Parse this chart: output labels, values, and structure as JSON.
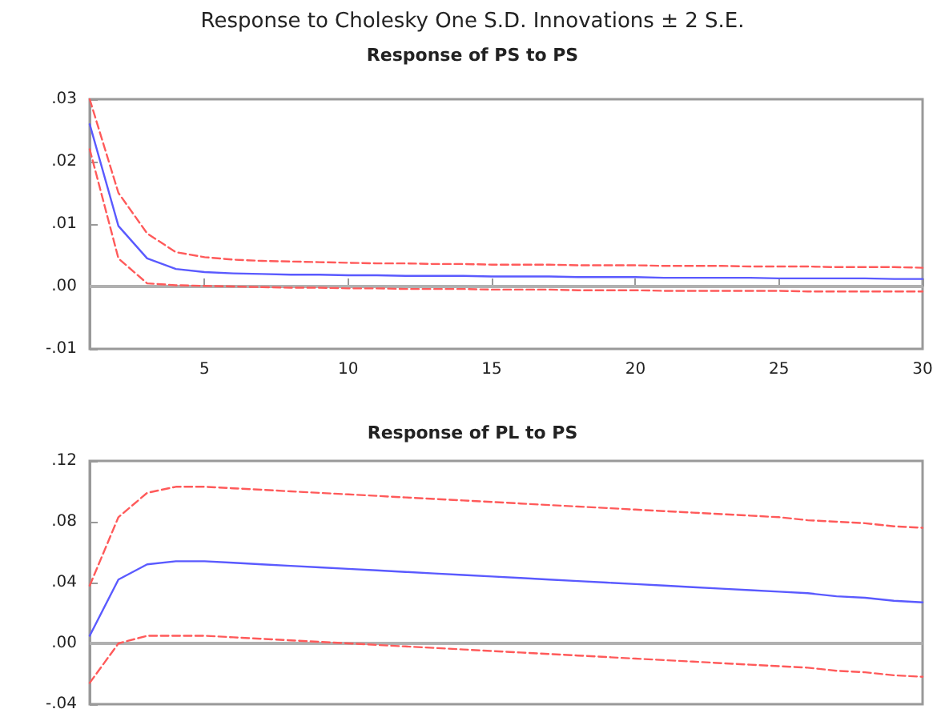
{
  "chart_data": [
    {
      "type": "line",
      "title": "Response to Cholesky One S.D. Innovations ± 2 S.E.",
      "subtitle": "Response of PS to PS",
      "x": [
        1,
        2,
        3,
        4,
        5,
        6,
        7,
        8,
        9,
        10,
        11,
        12,
        13,
        14,
        15,
        16,
        17,
        18,
        19,
        20,
        21,
        22,
        23,
        24,
        25,
        26,
        27,
        28,
        29,
        30
      ],
      "series": [
        {
          "color": "#ff5a5a",
          "line_style": "dashed",
          "values": [
            0.03,
            0.015,
            0.0085,
            0.0055,
            0.0047,
            0.0043,
            0.0041,
            0.004,
            0.0039,
            0.0038,
            0.0037,
            0.0037,
            0.0036,
            0.0036,
            0.0035,
            0.0035,
            0.0035,
            0.0034,
            0.0034,
            0.0034,
            0.0033,
            0.0033,
            0.0033,
            0.0032,
            0.0032,
            0.0032,
            0.0031,
            0.0031,
            0.0031,
            0.003
          ]
        },
        {
          "color": "#5a5aff",
          "line_style": "solid",
          "values": [
            0.026,
            0.0097,
            0.0045,
            0.0028,
            0.0023,
            0.0021,
            0.002,
            0.0019,
            0.0019,
            0.0018,
            0.0018,
            0.0017,
            0.0017,
            0.0017,
            0.0016,
            0.0016,
            0.0016,
            0.0015,
            0.0015,
            0.0015,
            0.0014,
            0.0014,
            0.0014,
            0.0014,
            0.0013,
            0.0013,
            0.0013,
            0.0013,
            0.0012,
            0.0012
          ]
        },
        {
          "color": "#ff5a5a",
          "line_style": "dashed",
          "values": [
            0.022,
            0.0045,
            0.0005,
            0.0002,
            0.0001,
            0.0,
            -0.0001,
            -0.0002,
            -0.0002,
            -0.0003,
            -0.0003,
            -0.0004,
            -0.0004,
            -0.0004,
            -0.0005,
            -0.0005,
            -0.0005,
            -0.0006,
            -0.0006,
            -0.0006,
            -0.0007,
            -0.0007,
            -0.0007,
            -0.0007,
            -0.0007,
            -0.0008,
            -0.0008,
            -0.0008,
            -0.0008,
            -0.0008
          ]
        }
      ],
      "xlim": [
        1,
        30
      ],
      "xticks": [
        5,
        10,
        15,
        20,
        25,
        30
      ],
      "ylim": [
        -0.01,
        0.03
      ],
      "yticks": [
        {
          "value": -0.01,
          "label": "-.01"
        },
        {
          "value": 0,
          "label": ".00"
        },
        {
          "value": 0.01,
          "label": ".01"
        },
        {
          "value": 0.02,
          "label": ".02"
        },
        {
          "value": 0.03,
          "label": ".03"
        }
      ],
      "ref_lines": [
        {
          "axis": "y",
          "value": 0,
          "color": "#b0b0b0"
        }
      ],
      "marker": "none",
      "grid": false
    },
    {
      "type": "line",
      "title": "Response of PL to PS",
      "x": [
        1,
        2,
        3,
        4,
        5,
        6,
        7,
        8,
        9,
        10,
        11,
        12,
        13,
        14,
        15,
        16,
        17,
        18,
        19,
        20,
        21,
        22,
        23,
        24,
        25,
        26,
        27,
        28,
        29,
        30
      ],
      "series": [
        {
          "color": "#ff5a5a",
          "line_style": "dashed",
          "values": [
            0.038,
            0.083,
            0.099,
            0.103,
            0.103,
            0.102,
            0.101,
            0.1,
            0.099,
            0.098,
            0.097,
            0.096,
            0.095,
            0.094,
            0.093,
            0.092,
            0.091,
            0.09,
            0.089,
            0.088,
            0.087,
            0.086,
            0.085,
            0.084,
            0.083,
            0.081,
            0.08,
            0.079,
            0.077,
            0.076
          ]
        },
        {
          "color": "#5a5aff",
          "line_style": "solid",
          "values": [
            0.005,
            0.042,
            0.052,
            0.054,
            0.054,
            0.053,
            0.052,
            0.051,
            0.05,
            0.049,
            0.048,
            0.047,
            0.046,
            0.045,
            0.044,
            0.043,
            0.042,
            0.041,
            0.04,
            0.039,
            0.038,
            0.037,
            0.036,
            0.035,
            0.034,
            0.033,
            0.031,
            0.03,
            0.028,
            0.027
          ]
        },
        {
          "color": "#ff5a5a",
          "line_style": "dashed",
          "values": [
            -0.026,
            0.0,
            0.005,
            0.005,
            0.005,
            0.004,
            0.003,
            0.002,
            0.001,
            0.0,
            -0.001,
            -0.002,
            -0.003,
            -0.004,
            -0.005,
            -0.006,
            -0.007,
            -0.008,
            -0.009,
            -0.01,
            -0.011,
            -0.012,
            -0.013,
            -0.014,
            -0.015,
            -0.016,
            -0.018,
            -0.019,
            -0.021,
            -0.022
          ]
        }
      ],
      "xlim": [
        1,
        30
      ],
      "ylim": [
        -0.04,
        0.12
      ],
      "yticks": [
        {
          "value": -0.04,
          "label": "-.04"
        },
        {
          "value": 0,
          "label": ".00"
        },
        {
          "value": 0.04,
          "label": ".04"
        },
        {
          "value": 0.08,
          "label": ".08"
        },
        {
          "value": 0.12,
          "label": ".12"
        }
      ],
      "ref_lines": [
        {
          "axis": "y",
          "value": 0,
          "color": "#b0b0b0"
        }
      ],
      "tick_labels": "y",
      "marker": "none",
      "grid": false
    }
  ]
}
